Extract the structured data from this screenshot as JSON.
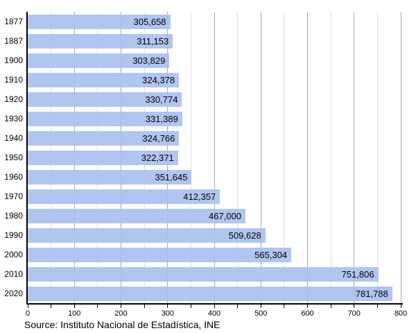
{
  "chart_data": {
    "type": "bar",
    "orientation": "horizontal",
    "title": "",
    "xlabel": "",
    "ylabel": "",
    "categories": [
      "1877",
      "1887",
      "1900",
      "1910",
      "1920",
      "1930",
      "1940",
      "1950",
      "1960",
      "1970",
      "1980",
      "1990",
      "2000",
      "2010",
      "2020"
    ],
    "values": [
      305658,
      311153,
      303829,
      324378,
      330774,
      331389,
      324766,
      322371,
      351645,
      412357,
      467000,
      509628,
      565304,
      751806,
      781788
    ],
    "value_labels": [
      "305,658",
      "311,153",
      "303,829",
      "324,378",
      "330,774",
      "331,389",
      "324,766",
      "322,371",
      "351,645",
      "412,357",
      "467,000",
      "509,628",
      "565,304",
      "751,806",
      "781,788"
    ],
    "xlim_thousands": [
      0,
      800
    ],
    "x_major_ticks": [
      0,
      100,
      200,
      300,
      400,
      500,
      600,
      700,
      800
    ],
    "x_minor_tick_step": 50,
    "grid": "vertical; minor every 50, major every 100",
    "legend": "none",
    "source_note": "Source: Instituto Nacional de Estadística, INE",
    "colors": {
      "bar_fill": "#b1c5f2",
      "minor_grid": "#e0e0e0",
      "major_grid": "#a8a8a8",
      "axis": "#000000",
      "text": "#000000",
      "background": "#ffffff"
    }
  }
}
